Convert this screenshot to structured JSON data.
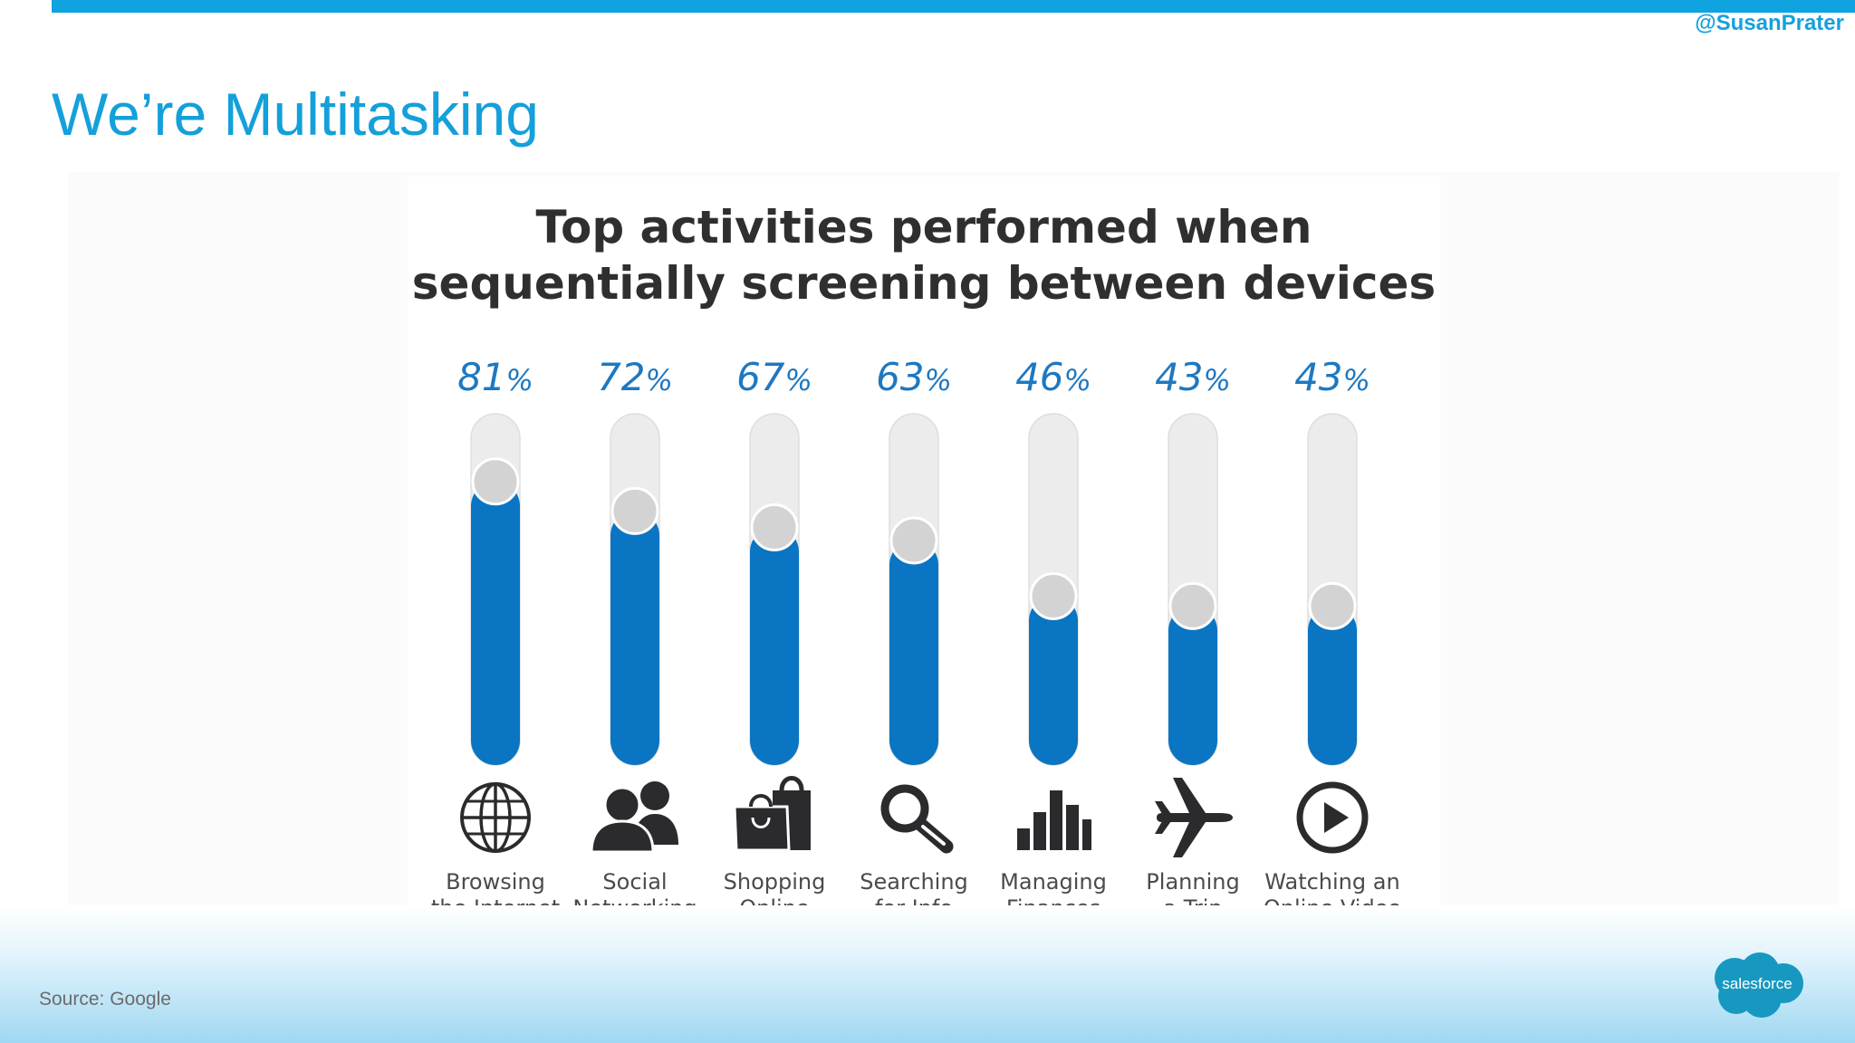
{
  "slide": {
    "title": "We’re Multitasking",
    "handle": "@SusanPrater",
    "source": "Source: Google",
    "logo_text": "salesforce",
    "accent_color": "#0fa3e0"
  },
  "chart_data": {
    "type": "bar",
    "title": "Top activities performed when sequentially screening between devices",
    "title_lines": [
      "Top activities performed when",
      "sequentially screening between devices"
    ],
    "categories": [
      "Browsing the Internet",
      "Social Networking",
      "Shopping Online",
      "Searching for Info",
      "Managing Finances",
      "Planning a Trip",
      "Watching an Online Video"
    ],
    "category_lines": [
      [
        "Browsing",
        "the Internet"
      ],
      [
        "Social",
        "Networking"
      ],
      [
        "Shopping",
        "Online"
      ],
      [
        "Searching",
        "for Info"
      ],
      [
        "Managing",
        "Finances"
      ],
      [
        "Planning",
        "a Trip"
      ],
      [
        "Watching an",
        "Online Video"
      ]
    ],
    "icons": [
      "globe-icon",
      "people-icon",
      "shopping-bags-icon",
      "magnifier-icon",
      "bar-chart-icon",
      "airplane-icon",
      "play-icon"
    ],
    "values": [
      81,
      72,
      67,
      63,
      46,
      43,
      43
    ],
    "value_labels": [
      "81",
      "72",
      "67",
      "63",
      "46",
      "43",
      "43"
    ],
    "unit": "%",
    "ylim": [
      0,
      100
    ],
    "grid": false,
    "colors": {
      "fill": "#0a75c2",
      "track": "#ececec",
      "label": "#1e78c0"
    }
  }
}
